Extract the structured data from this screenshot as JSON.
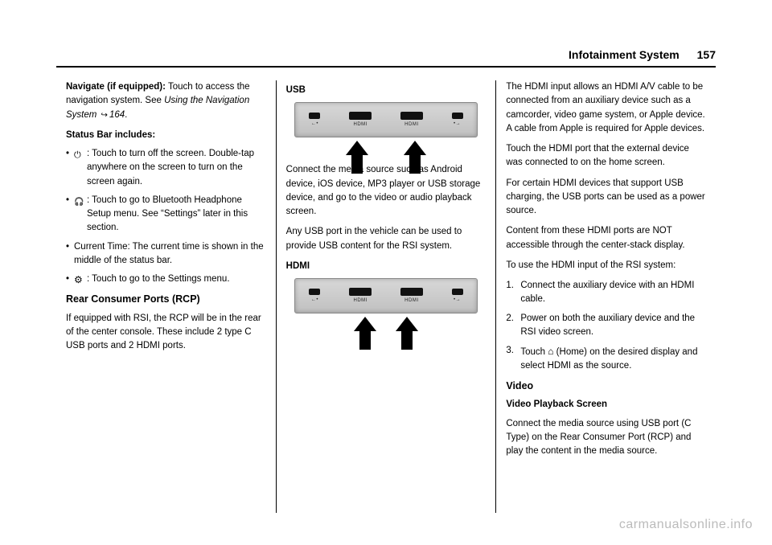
{
  "header": {
    "chapter": "Infotainment System",
    "page_number": "157"
  },
  "col1": {
    "navigate_lead": "Navigate (if equipped):",
    "navigate_text": " Touch to access the navigation system. See ",
    "navigate_ref": "Using the Navigation System",
    "navigate_ref_page": "164",
    "navigate_period": ".",
    "status_bar_heading": "Status Bar includes:",
    "b1": ": Touch to turn off the screen. Double-tap anywhere on the screen to turn on the screen again.",
    "b2": ": Touch to go to Bluetooth Headphone Setup menu. See “Settings” later in this section.",
    "b3": "Current Time: The current time is shown in the middle of the status bar.",
    "b4": ": Touch to go to the Settings menu.",
    "rcp_heading": "Rear Consumer Ports (RCP)",
    "rcp_text": "If equipped with RSI, the RCP will be in the rear of the center console. These include 2 type C USB ports and 2 HDMI ports."
  },
  "col2": {
    "usb_heading": "USB",
    "usb_p1": "Connect the media source such as Android device, iOS device, MP3 player or USB storage device, and go to the video or audio playback screen.",
    "usb_p2": "Any USB port in the vehicle can be used to provide USB content for the RSI system.",
    "hdmi_heading": "HDMI",
    "port_labels": {
      "usb": "←•",
      "hdmi": "HDMI",
      "usb2": "•→"
    }
  },
  "col3": {
    "p1": "The HDMI input allows an HDMI A/V cable to be connected from an auxiliary device such as a camcorder, video game system, or Apple device. A cable from Apple is required for Apple devices.",
    "p2": "Touch the HDMI port that the external device was connected to on the home screen.",
    "p3": "For certain HDMI devices that support USB charging, the USB ports can be used as a power source.",
    "p4": "Content from these HDMI ports are NOT accessible through the center-stack display.",
    "p5": "To use the HDMI input of the RSI system:",
    "ol1": "Connect the auxiliary device with an HDMI cable.",
    "ol2": "Power on both the auxiliary device and the RSI video screen.",
    "ol3a": "Touch ",
    "ol3b": " (Home) on the desired display and select HDMI as the source.",
    "video_heading": "Video",
    "video_sub": "Video Playback Screen",
    "video_p": "Connect the media source using USB port (C Type) on the Rear Consumer Port (RCP) and play the content in the media source."
  },
  "watermark": "carmanualsonline.info",
  "colors": {
    "rule": "#000000",
    "panel_bg_top": "#d8d8d8",
    "panel_bg_bottom": "#c0c0c0",
    "watermark_color": "#bbbbbb"
  }
}
